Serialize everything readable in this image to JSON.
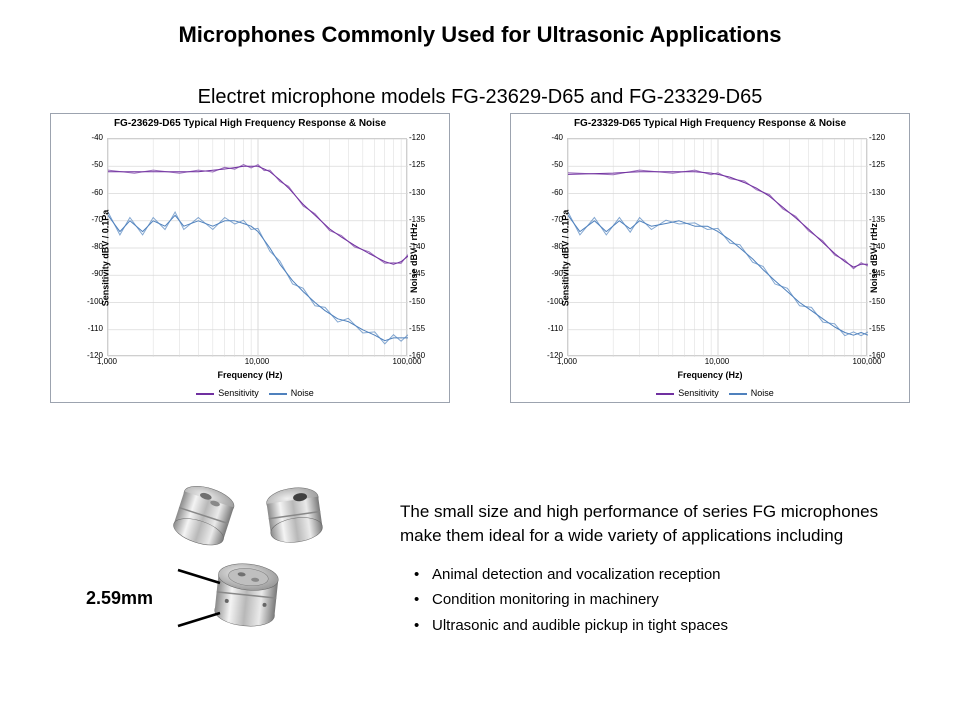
{
  "title": "Microphones Commonly Used for Ultrasonic Applications",
  "subtitle": "Electret microphone models FG-23629-D65 and FG-23329-D65",
  "charts": [
    {
      "title": "FG-23629-D65 Typical High Frequency Response & Noise",
      "type": "line",
      "xscale": "log",
      "xlim": [
        1000,
        100000
      ],
      "xticks": [
        1000,
        10000,
        100000
      ],
      "xtick_labels": [
        "1,000",
        "10,000",
        "100,000"
      ],
      "y_left_label": "Sensitivity dBV / 0.1Pa",
      "y_left_lim": [
        -120,
        -40
      ],
      "y_left_ticks": [
        -40,
        -50,
        -60,
        -70,
        -80,
        -90,
        -100,
        -110,
        -120
      ],
      "y_right_label": "Noise dBV / rtHz",
      "y_right_lim": [
        -160,
        -120
      ],
      "y_right_ticks": [
        -120,
        -125,
        -130,
        -135,
        -140,
        -145,
        -150,
        -155,
        -160
      ],
      "xlabel": "Frequency (Hz)",
      "legend": [
        {
          "label": "Sensitivity",
          "color": "#7030a0"
        },
        {
          "label": "Noise",
          "color": "#4f81bd"
        }
      ],
      "grid_color": "#d9d9d9",
      "background_color": "#ffffff",
      "line_width": 1,
      "sensitivity": {
        "color": "#7030a0",
        "y_axis": "left",
        "points": [
          [
            1000,
            -52
          ],
          [
            1500,
            -52
          ],
          [
            2000,
            -52
          ],
          [
            3000,
            -52
          ],
          [
            4000,
            -52
          ],
          [
            5000,
            -51.5
          ],
          [
            6000,
            -51
          ],
          [
            7000,
            -50.5
          ],
          [
            8000,
            -50
          ],
          [
            9000,
            -50
          ],
          [
            10000,
            -50
          ],
          [
            11000,
            -51
          ],
          [
            12000,
            -52
          ],
          [
            14000,
            -55
          ],
          [
            16000,
            -58
          ],
          [
            20000,
            -64
          ],
          [
            24000,
            -68
          ],
          [
            30000,
            -73
          ],
          [
            36000,
            -76
          ],
          [
            44000,
            -79
          ],
          [
            55000,
            -82
          ],
          [
            70000,
            -85
          ],
          [
            80000,
            -86
          ],
          [
            90000,
            -85
          ],
          [
            100000,
            -83
          ]
        ]
      },
      "noise": {
        "color": "#4f81bd",
        "y_axis": "right",
        "points": [
          [
            1000,
            -134
          ],
          [
            1200,
            -137
          ],
          [
            1400,
            -135
          ],
          [
            1700,
            -137
          ],
          [
            2000,
            -135
          ],
          [
            2400,
            -136
          ],
          [
            2800,
            -134
          ],
          [
            3200,
            -136
          ],
          [
            4000,
            -135
          ],
          [
            5000,
            -136
          ],
          [
            6000,
            -135
          ],
          [
            7000,
            -135
          ],
          [
            8000,
            -135.5
          ],
          [
            9000,
            -136
          ],
          [
            10000,
            -137
          ],
          [
            12000,
            -140
          ],
          [
            14000,
            -143
          ],
          [
            17000,
            -146
          ],
          [
            20000,
            -148
          ],
          [
            24000,
            -150
          ],
          [
            28000,
            -151.5
          ],
          [
            34000,
            -153
          ],
          [
            40000,
            -153.5
          ],
          [
            50000,
            -155
          ],
          [
            60000,
            -156
          ],
          [
            70000,
            -157
          ],
          [
            80000,
            -156.5
          ],
          [
            90000,
            -156.5
          ],
          [
            100000,
            -156.5
          ]
        ]
      }
    },
    {
      "title": "FG-23329-D65 Typical High Frequency Response & Noise",
      "type": "line",
      "xscale": "log",
      "xlim": [
        1000,
        100000
      ],
      "xticks": [
        1000,
        10000,
        100000
      ],
      "xtick_labels": [
        "1,000",
        "10,000",
        "100,000"
      ],
      "y_left_label": "Sensitivity dBV / 0.1Pa",
      "y_left_lim": [
        -120,
        -40
      ],
      "y_left_ticks": [
        -40,
        -50,
        -60,
        -70,
        -80,
        -90,
        -100,
        -110,
        -120
      ],
      "y_right_label": "Noise dBV / rtHz",
      "y_right_lim": [
        -160,
        -120
      ],
      "y_right_ticks": [
        -120,
        -125,
        -130,
        -135,
        -140,
        -145,
        -150,
        -155,
        -160
      ],
      "xlabel": "Frequency (Hz)",
      "legend": [
        {
          "label": "Sensitivity",
          "color": "#7030a0"
        },
        {
          "label": "Noise",
          "color": "#4f81bd"
        }
      ],
      "grid_color": "#d9d9d9",
      "background_color": "#ffffff",
      "line_width": 1,
      "sensitivity": {
        "color": "#7030a0",
        "y_axis": "left",
        "points": [
          [
            1000,
            -53
          ],
          [
            2000,
            -52.5
          ],
          [
            3000,
            -52
          ],
          [
            5000,
            -52
          ],
          [
            7000,
            -52
          ],
          [
            9000,
            -52.5
          ],
          [
            10000,
            -53
          ],
          [
            12000,
            -54
          ],
          [
            15000,
            -56
          ],
          [
            18000,
            -58
          ],
          [
            22000,
            -61
          ],
          [
            27000,
            -65
          ],
          [
            33000,
            -69
          ],
          [
            40000,
            -73
          ],
          [
            50000,
            -78
          ],
          [
            60000,
            -82
          ],
          [
            70000,
            -85
          ],
          [
            80000,
            -87
          ],
          [
            90000,
            -86
          ],
          [
            100000,
            -86
          ]
        ]
      },
      "noise": {
        "color": "#4f81bd",
        "y_axis": "right",
        "points": [
          [
            1000,
            -134
          ],
          [
            1200,
            -137
          ],
          [
            1500,
            -135
          ],
          [
            1800,
            -137
          ],
          [
            2200,
            -135
          ],
          [
            2600,
            -136.5
          ],
          [
            3000,
            -135
          ],
          [
            3600,
            -136
          ],
          [
            4500,
            -135.5
          ],
          [
            5500,
            -135
          ],
          [
            7000,
            -136
          ],
          [
            8500,
            -136
          ],
          [
            10000,
            -137
          ],
          [
            12000,
            -138.5
          ],
          [
            14000,
            -140
          ],
          [
            17000,
            -142
          ],
          [
            20000,
            -144
          ],
          [
            24000,
            -146
          ],
          [
            29000,
            -148
          ],
          [
            35000,
            -150
          ],
          [
            42000,
            -151.5
          ],
          [
            50000,
            -153
          ],
          [
            60000,
            -154.5
          ],
          [
            70000,
            -155.5
          ],
          [
            80000,
            -156
          ],
          [
            90000,
            -155.5
          ],
          [
            100000,
            -156
          ]
        ]
      }
    }
  ],
  "mic": {
    "dimension_label": "2.59mm",
    "body_fill_light": "#e8e8e8",
    "body_fill_dark": "#a0a0a0",
    "body_fill_mid": "#c9c9c9",
    "outline": "#606060"
  },
  "description": {
    "paragraph": "The small size and high performance of series FG microphones make them ideal for a wide variety of applications including",
    "bullets": [
      "Animal detection and vocalization reception",
      "Condition monitoring in machinery",
      "Ultrasonic and audible pickup in tight spaces"
    ]
  }
}
